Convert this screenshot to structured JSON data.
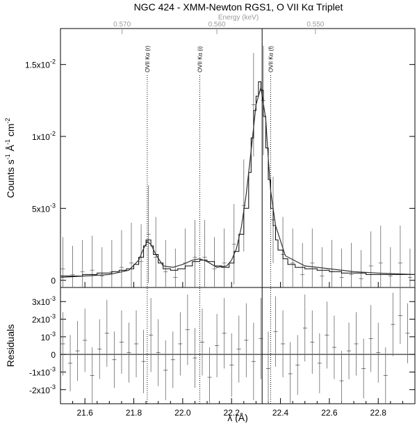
{
  "title": "NGC 424 - XMM-Newton RGS1, O VII Kα Triplet",
  "chart_data": {
    "type": "line",
    "title": "NGC 424 - XMM-Newton RGS1, O VII Kα Triplet",
    "xlabel": "λ (Å)",
    "xlim": [
      21.5,
      22.95
    ],
    "x_ticks": [
      21.6,
      21.8,
      22.0,
      22.2,
      22.4,
      22.6,
      22.8
    ],
    "x_tick_labels": [
      "21.6",
      "21.8",
      "22.0",
      "22.2",
      "22.4",
      "22.6",
      "22.8"
    ],
    "top_axis": {
      "label": "Energy (keV)",
      "ticks": [
        {
          "label": "0.570",
          "wavelength": 21.752
        },
        {
          "label": "0.560",
          "wavelength": 22.14
        },
        {
          "label": "0.550",
          "wavelength": 22.543
        }
      ],
      "color": "#9a9a9a"
    },
    "panels": [
      {
        "name": "spectrum",
        "ylabel_parts": [
          "Counts s",
          "-1",
          " Å",
          "-1",
          " cm",
          "-2"
        ],
        "ylim": [
          -0.0005,
          0.0175
        ],
        "y_ticks": [
          0,
          0.005,
          0.01,
          0.015
        ],
        "y_tick_labels": [
          {
            "base": "0",
            "sup": ""
          },
          {
            "base": "5x10",
            "sup": "-3"
          },
          {
            "base": "1x10",
            "sup": "-2"
          },
          {
            "base": "1.5x10",
            "sup": "-2"
          }
        ],
        "data_step": {
          "x": [
            21.5,
            21.53,
            21.56,
            21.59,
            21.62,
            21.65,
            21.68,
            21.71,
            21.74,
            21.77,
            21.8,
            21.82,
            21.84,
            21.85,
            21.86,
            21.87,
            21.88,
            21.9,
            21.92,
            21.95,
            21.98,
            22.01,
            22.04,
            22.07,
            22.1,
            22.13,
            22.16,
            22.19,
            22.21,
            22.23,
            22.25,
            22.27,
            22.28,
            22.29,
            22.3,
            22.31,
            22.32,
            22.33,
            22.34,
            22.35,
            22.36,
            22.37,
            22.38,
            22.39,
            22.41,
            22.43,
            22.46,
            22.5,
            22.55,
            22.6,
            22.65,
            22.7,
            22.75,
            22.8,
            22.85,
            22.9,
            22.95
          ],
          "y": [
            0.0003,
            0.0003,
            0.0003,
            0.0004,
            0.0004,
            0.0005,
            0.0005,
            0.0006,
            0.0007,
            0.0008,
            0.0011,
            0.0016,
            0.0024,
            0.0028,
            0.0028,
            0.0024,
            0.0018,
            0.0012,
            0.0008,
            0.0007,
            0.0008,
            0.001,
            0.0013,
            0.0014,
            0.0013,
            0.001,
            0.0009,
            0.0012,
            0.002,
            0.0032,
            0.005,
            0.0075,
            0.0099,
            0.0118,
            0.0128,
            0.0138,
            0.0132,
            0.0114,
            0.0092,
            0.007,
            0.005,
            0.0038,
            0.0028,
            0.0021,
            0.0015,
            0.0011,
            0.0009,
            0.0008,
            0.0007,
            0.0006,
            0.0005,
            0.0005,
            0.0004,
            0.0004,
            0.0004,
            0.0004,
            0.0004
          ]
        },
        "model": {
          "x": [
            21.5,
            21.6,
            21.7,
            21.78,
            21.82,
            21.84,
            21.855,
            21.87,
            21.89,
            21.92,
            21.96,
            22.0,
            22.04,
            22.07,
            22.1,
            22.14,
            22.18,
            22.2,
            22.22,
            22.24,
            22.26,
            22.28,
            22.3,
            22.32,
            22.34,
            22.35,
            22.36,
            22.38,
            22.42,
            22.5,
            22.6,
            22.7,
            22.8,
            22.95
          ],
          "y": [
            0.0002,
            0.0003,
            0.0004,
            0.0007,
            0.0014,
            0.0022,
            0.0027,
            0.0025,
            0.0018,
            0.001,
            0.0009,
            0.0011,
            0.0014,
            0.0015,
            0.0013,
            0.0009,
            0.001,
            0.0014,
            0.0022,
            0.0037,
            0.006,
            0.009,
            0.0122,
            0.0134,
            0.0112,
            0.0085,
            0.0062,
            0.0038,
            0.0017,
            0.001,
            0.0008,
            0.0006,
            0.0005,
            0.0004
          ]
        },
        "error_bars": {
          "x": [
            21.51,
            21.55,
            21.59,
            21.63,
            21.67,
            21.71,
            21.75,
            21.79,
            21.83,
            21.86,
            21.89,
            21.93,
            21.97,
            22.01,
            22.05,
            22.09,
            22.13,
            22.17,
            22.21,
            22.25,
            22.29,
            22.33,
            22.37,
            22.41,
            22.45,
            22.49,
            22.53,
            22.57,
            22.61,
            22.65,
            22.69,
            22.73,
            22.77,
            22.81,
            22.85,
            22.89,
            22.93
          ],
          "y": [
            0.0008,
            0.0004,
            0.0006,
            0.0007,
            0.0003,
            0.0006,
            0.0009,
            0.0012,
            0.0013,
            0.0032,
            0.0016,
            0.0006,
            0.0002,
            0.0012,
            0.0016,
            0.0016,
            0.0008,
            0.0012,
            0.0025,
            0.0052,
            0.0122,
            0.0125,
            0.0042,
            0.0018,
            0.0012,
            0.0004,
            0.0012,
            0.0003,
            0.0006,
            0.0002,
            0.0004,
            0.0001,
            0.001,
            0.0012,
            0.0003,
            0.0012,
            0.0002
          ],
          "err": [
            0.0022,
            0.002,
            0.0022,
            0.0024,
            0.002,
            0.0022,
            0.0026,
            0.0028,
            0.0026,
            0.0034,
            0.0028,
            0.0022,
            0.002,
            0.0024,
            0.0026,
            0.0026,
            0.0022,
            0.0024,
            0.0028,
            0.0032,
            0.0036,
            0.0038,
            0.003,
            0.0026,
            0.0024,
            0.0022,
            0.0024,
            0.002,
            0.0022,
            0.002,
            0.0022,
            0.002,
            0.0024,
            0.0026,
            0.002,
            0.0026,
            0.002
          ]
        }
      },
      {
        "name": "residuals",
        "ylabel": "Residuals",
        "ylim": [
          -0.0028,
          0.0038
        ],
        "y_ticks": [
          -0.002,
          -0.001,
          0,
          0.001,
          0.002,
          0.003
        ],
        "y_tick_labels": [
          {
            "base": "-2x10",
            "sup": "-3"
          },
          {
            "base": "-1x10",
            "sup": "-3"
          },
          {
            "base": "0",
            "sup": ""
          },
          {
            "base": "10",
            "sup": "-3"
          },
          {
            "base": "2x10",
            "sup": "-3"
          },
          {
            "base": "3x10",
            "sup": "-3"
          }
        ],
        "points": {
          "x": [
            21.51,
            21.54,
            21.57,
            21.6,
            21.63,
            21.66,
            21.69,
            21.72,
            21.75,
            21.78,
            21.81,
            21.84,
            21.87,
            21.9,
            21.93,
            21.96,
            21.99,
            22.02,
            22.05,
            22.08,
            22.11,
            22.14,
            22.17,
            22.2,
            22.23,
            22.26,
            22.29,
            22.32,
            22.35,
            22.38,
            22.41,
            22.44,
            22.47,
            22.5,
            22.53,
            22.56,
            22.59,
            22.62,
            22.65,
            22.68,
            22.71,
            22.74,
            22.77,
            22.8,
            22.83,
            22.86,
            22.89,
            22.92
          ],
          "y": [
            0.0006,
            -0.0005,
            0.0002,
            0.0008,
            -0.0012,
            0.0003,
            0.0012,
            -0.0003,
            0.0007,
            0.0001,
            0.0006,
            -0.0004,
            0.0011,
            0.0001,
            -0.0009,
            -0.0003,
            0.0006,
            0.0014,
            -0.0002,
            0.0007,
            -0.0013,
            0.0005,
            0.0012,
            -0.0006,
            0.0003,
            0.0008,
            -0.0004,
            0.0009,
            -0.0008,
            0.0013,
            0.0006,
            -0.0011,
            -0.0006,
            0.0015,
            0.0007,
            -0.0005,
            0.0011,
            0.0004,
            -0.0015,
            0.0002,
            0.0006,
            -0.0008,
            0.0009,
            0.0001,
            -0.0012,
            0.0017,
            0.0022,
            0.0012
          ],
          "err": [
            0.0018,
            0.0016,
            0.0017,
            0.0018,
            0.0016,
            0.0017,
            0.0019,
            0.0016,
            0.0018,
            0.0017,
            0.0019,
            0.0018,
            0.0021,
            0.0019,
            0.0017,
            0.0016,
            0.0018,
            0.002,
            0.0017,
            0.0019,
            0.0017,
            0.0018,
            0.002,
            0.0018,
            0.0019,
            0.0021,
            0.0022,
            0.0023,
            0.0021,
            0.002,
            0.0019,
            0.0018,
            0.0017,
            0.0019,
            0.0018,
            0.0017,
            0.0019,
            0.0018,
            0.0017,
            0.0016,
            0.0018,
            0.0017,
            0.0019,
            0.0017,
            0.0016,
            0.0018,
            0.0016,
            0.0017
          ]
        }
      }
    ],
    "line_markers": [
      {
        "label": "OVII Kα (r)",
        "x": 21.855
      },
      {
        "label": "OVII Kα (i)",
        "x": 22.07
      },
      {
        "label": "OVII Kα (f)",
        "x": 22.36
      }
    ],
    "vertical_line": {
      "x": 22.325
    }
  }
}
